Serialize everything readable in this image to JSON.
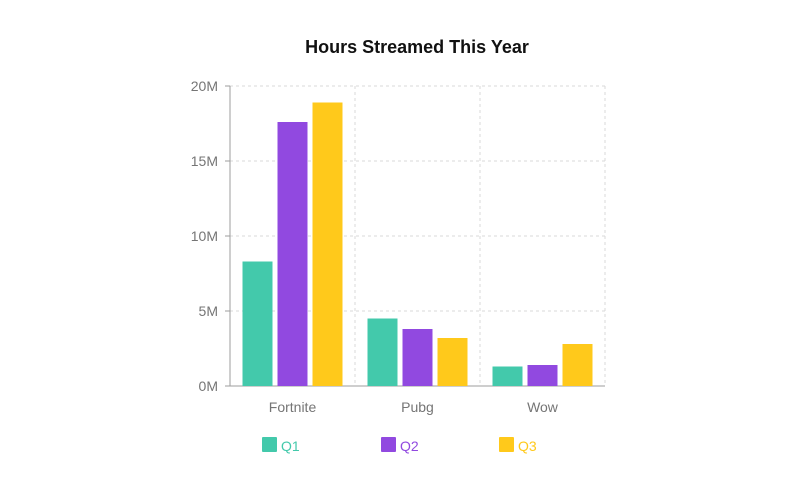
{
  "chart_data": {
    "type": "bar",
    "title": "Hours Streamed This Year",
    "xlabel": "",
    "ylabel": "",
    "categories": [
      "Fortnite",
      "Pubg",
      "Wow"
    ],
    "series": [
      {
        "name": "Q1",
        "color": "#43C9AB",
        "values": [
          8300000,
          4500000,
          1300000
        ]
      },
      {
        "name": "Q2",
        "color": "#9149E0",
        "values": [
          17600000,
          3800000,
          1400000
        ]
      },
      {
        "name": "Q3",
        "color": "#FFC91B",
        "values": [
          18900000,
          3200000,
          2800000
        ]
      }
    ],
    "ylim": [
      0,
      20000000
    ],
    "yticks": [
      {
        "value": 0,
        "label": "0M"
      },
      {
        "value": 5000000,
        "label": "5M"
      },
      {
        "value": 10000000,
        "label": "10M"
      },
      {
        "value": 15000000,
        "label": "15M"
      },
      {
        "value": 20000000,
        "label": "20M"
      }
    ],
    "grid": true,
    "legend_position": "bottom"
  }
}
